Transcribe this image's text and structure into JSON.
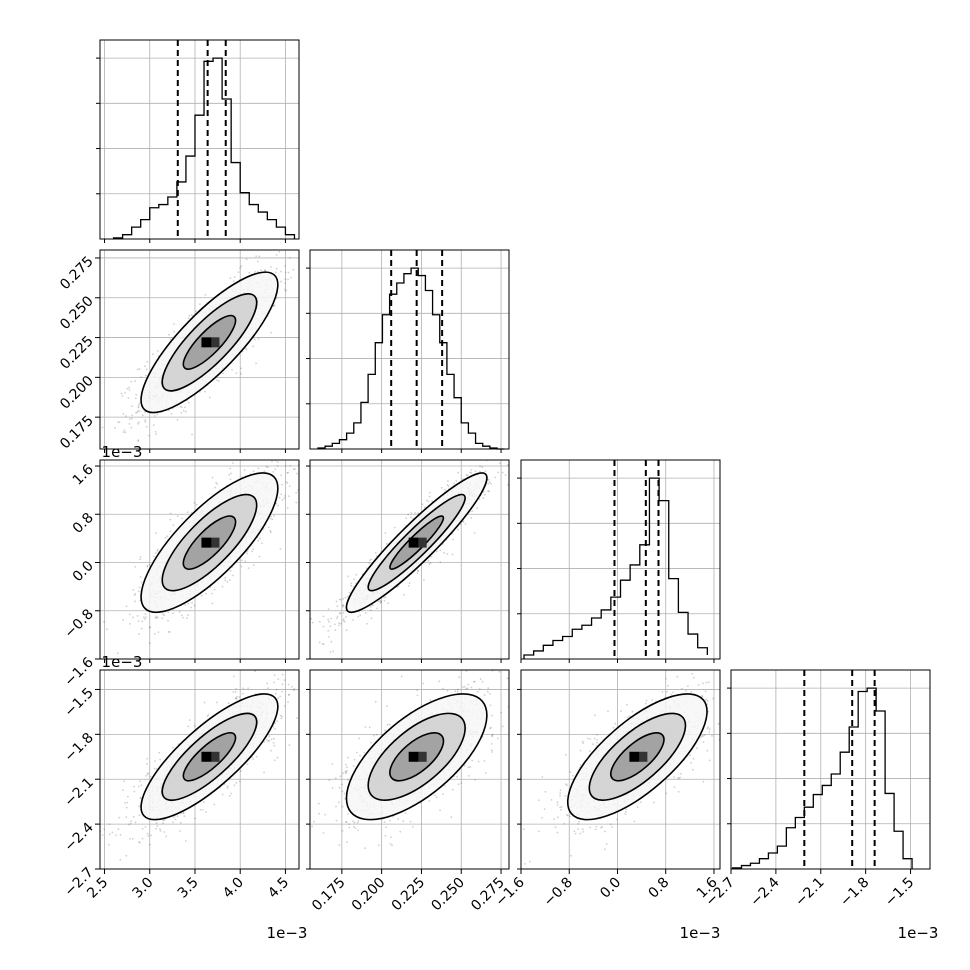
{
  "chart_data": {
    "type": "corner",
    "parameters": 4,
    "grid": true,
    "colors": {
      "line": "#000000",
      "grid": "#b0b0b0",
      "points": "#555555",
      "density_dark": "#000000"
    },
    "ticks": [
      {
        "values": [
          2.5,
          3.0,
          3.5,
          4.0,
          4.5
        ],
        "labels": [
          "2.5",
          "3.0",
          "3.5",
          "4.0",
          "4.5"
        ],
        "offset": "1e−3"
      },
      {
        "values": [
          0.175,
          0.2,
          0.225,
          0.25,
          0.275
        ],
        "labels": [
          "0.175",
          "0.200",
          "0.225",
          "0.250",
          "0.275"
        ],
        "offset": "1e−3"
      },
      {
        "values": [
          -1.6,
          -0.8,
          0.0,
          0.8,
          1.6
        ],
        "labels": [
          "−1.6",
          "−0.8",
          "0.0",
          "0.8",
          "1.6"
        ],
        "offset": "1e−3"
      },
      {
        "values": [
          -2.7,
          -2.4,
          -2.1,
          -1.8,
          -1.5
        ],
        "labels": [
          "−2.7",
          "−2.4",
          "−2.1",
          "−1.8",
          "−1.5"
        ],
        "offset": "1e−3"
      }
    ],
    "ranges": [
      [
        2.45,
        4.65
      ],
      [
        0.155,
        0.28
      ],
      [
        -1.6,
        1.7
      ],
      [
        -2.7,
        -1.37
      ]
    ],
    "quantiles": [
      [
        3.31,
        3.64,
        3.84
      ],
      [
        0.206,
        0.222,
        0.238
      ],
      [
        -0.05,
        0.47,
        0.68
      ],
      [
        -2.21,
        -1.89,
        -1.74
      ]
    ],
    "histograms": [
      {
        "edges": [
          2.6,
          2.7,
          2.8,
          2.9,
          3.0,
          3.1,
          3.2,
          3.3,
          3.4,
          3.5,
          3.6,
          3.7,
          3.8,
          3.9,
          4.0,
          4.1,
          4.2,
          4.3,
          4.4,
          4.5,
          4.6
        ],
        "counts": [
          1,
          4,
          11,
          18,
          29,
          32,
          39,
          53,
          77,
          115,
          165,
          168,
          130,
          71,
          43,
          32,
          25,
          18,
          11,
          4
        ]
      },
      {
        "edges": [
          0.16,
          0.1645,
          0.169,
          0.1735,
          0.178,
          0.1825,
          0.187,
          0.1915,
          0.196,
          0.2005,
          0.205,
          0.2095,
          0.214,
          0.2185,
          0.223,
          0.2275,
          0.232,
          0.2365,
          0.241,
          0.2455,
          0.25,
          0.2545,
          0.259,
          0.2635,
          0.268,
          0.2725,
          0.277
        ],
        "counts": [
          1,
          3,
          6,
          10,
          17,
          28,
          50,
          80,
          114,
          144,
          166,
          178,
          188,
          194,
          186,
          170,
          144,
          114,
          80,
          55,
          28,
          17,
          6,
          3,
          1,
          0
        ]
      },
      {
        "edges": [
          -1.55,
          -1.39,
          -1.23,
          -1.07,
          -0.91,
          -0.75,
          -0.59,
          -0.43,
          -0.27,
          -0.11,
          0.05,
          0.21,
          0.37,
          0.53,
          0.69,
          0.85,
          1.01,
          1.17,
          1.33,
          1.49
        ],
        "counts": [
          5,
          10,
          17,
          23,
          28,
          37,
          42,
          51,
          61,
          77,
          98,
          117,
          142,
          225,
          197,
          100,
          58,
          31,
          14,
          5
        ]
      },
      {
        "edges": [
          -2.69,
          -2.63,
          -2.57,
          -2.51,
          -2.45,
          -2.39,
          -2.33,
          -2.27,
          -2.21,
          -2.15,
          -2.09,
          -2.03,
          -1.97,
          -1.91,
          -1.85,
          -1.79,
          -1.73,
          -1.67,
          -1.61,
          -1.55,
          -1.49
        ],
        "counts": [
          1,
          3,
          5,
          9,
          14,
          20,
          36,
          45,
          54,
          65,
          73,
          83,
          102,
          124,
          155,
          158,
          138,
          66,
          33,
          9
        ]
      }
    ],
    "pairs": [
      {
        "row": 1,
        "col": 0,
        "mean": [
          3.66,
          0.222
        ],
        "sd": [
          0.36,
          0.021
        ],
        "rho": 0.82
      },
      {
        "row": 2,
        "col": 0,
        "mean": [
          3.66,
          0.33
        ],
        "sd": [
          0.36,
          0.55
        ],
        "rho": 0.78
      },
      {
        "row": 2,
        "col": 1,
        "mean": [
          0.222,
          0.33
        ],
        "sd": [
          0.021,
          0.55
        ],
        "rho": 0.93
      },
      {
        "row": 3,
        "col": 0,
        "mean": [
          3.66,
          -1.95
        ],
        "sd": [
          0.36,
          0.2
        ],
        "rho": 0.8
      },
      {
        "row": 3,
        "col": 1,
        "mean": [
          0.222,
          -1.95
        ],
        "sd": [
          0.021,
          0.2
        ],
        "rho": 0.66
      },
      {
        "row": 3,
        "col": 2,
        "mean": [
          0.33,
          -1.95
        ],
        "sd": [
          0.55,
          0.2
        ],
        "rho": 0.72
      }
    ]
  }
}
